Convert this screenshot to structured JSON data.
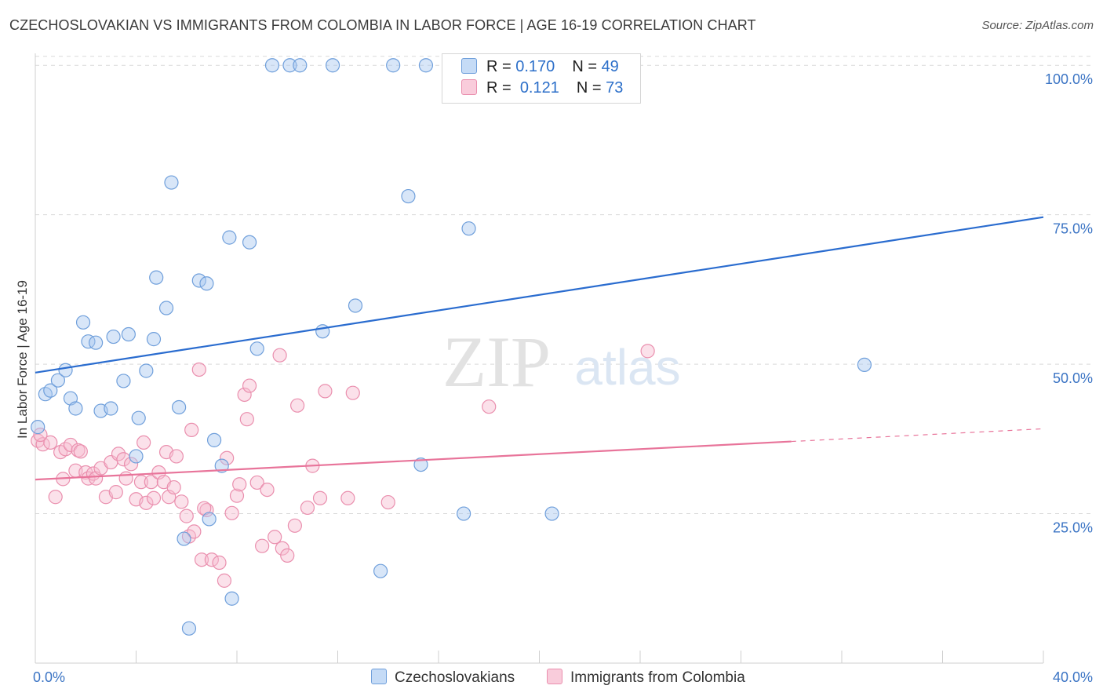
{
  "header": {
    "title": "CZECHOSLOVAKIAN VS IMMIGRANTS FROM COLOMBIA IN LABOR FORCE | AGE 16-19 CORRELATION CHART",
    "source": "Source: ZipAtlas.com"
  },
  "watermark": {
    "zip": "ZIP",
    "atlas": "atlas"
  },
  "legend": {
    "rows": [
      {
        "r_label": "R =",
        "r_value": "0.170",
        "n_label": "N =",
        "n_value": "49"
      },
      {
        "r_label": "R =",
        "r_value": "0.121",
        "n_label": "N =",
        "n_value": "73"
      }
    ]
  },
  "bottom_legend": {
    "blue_label": "Czechoslovakians",
    "pink_label": "Immigrants from Colombia"
  },
  "colors": {
    "blue_fill": "#a9c8f0",
    "blue_stroke": "#6f9fdb",
    "blue_line": "#2a6ccf",
    "pink_fill": "#f7bdd0",
    "pink_stroke": "#ea8fae",
    "pink_line": "#e8749a",
    "grid": "#d9d9d9",
    "tick_text": "#3b74c4"
  },
  "chart_data": {
    "type": "scatter",
    "title": "CZECHOSLOVAKIAN VS IMMIGRANTS FROM COLOMBIA IN LABOR FORCE | AGE 16-19 CORRELATION CHART",
    "xlabel": "",
    "ylabel": "In Labor Force | Age 16-19",
    "xlim": [
      0,
      40
    ],
    "ylim": [
      0,
      102
    ],
    "x_tick_labels": [
      "0.0%",
      "40.0%"
    ],
    "y_ticks": [
      25,
      50,
      75,
      100
    ],
    "y_tick_labels": [
      "25.0%",
      "50.0%",
      "75.0%",
      "100.0%"
    ],
    "grid": true,
    "legend_position": "top-center",
    "series": [
      {
        "name": "Czechoslovakians",
        "r": 0.17,
        "n": 49,
        "trend": {
          "x": [
            0,
            40
          ],
          "y": [
            48.6,
            74.6
          ],
          "dashed_from": null
        },
        "points": [
          [
            0.1,
            39.5
          ],
          [
            0.4,
            45.0
          ],
          [
            0.6,
            45.6
          ],
          [
            0.9,
            47.3
          ],
          [
            1.2,
            49.0
          ],
          [
            1.4,
            44.3
          ],
          [
            1.6,
            42.6
          ],
          [
            1.9,
            57.0
          ],
          [
            2.1,
            53.8
          ],
          [
            2.4,
            53.6
          ],
          [
            2.6,
            42.2
          ],
          [
            3.0,
            42.6
          ],
          [
            3.1,
            54.6
          ],
          [
            3.5,
            47.2
          ],
          [
            3.7,
            55.0
          ],
          [
            4.0,
            34.6
          ],
          [
            4.1,
            41.0
          ],
          [
            4.4,
            48.9
          ],
          [
            4.7,
            54.2
          ],
          [
            4.8,
            64.5
          ],
          [
            5.2,
            59.4
          ],
          [
            5.4,
            80.4
          ],
          [
            5.7,
            42.8
          ],
          [
            5.9,
            20.8
          ],
          [
            6.1,
            5.8
          ],
          [
            6.5,
            64.0
          ],
          [
            6.8,
            63.5
          ],
          [
            6.9,
            24.1
          ],
          [
            7.1,
            37.3
          ],
          [
            7.4,
            33.0
          ],
          [
            7.7,
            71.2
          ],
          [
            7.8,
            10.8
          ],
          [
            8.5,
            70.4
          ],
          [
            8.8,
            52.6
          ],
          [
            9.4,
            100.0
          ],
          [
            10.1,
            100.0
          ],
          [
            10.5,
            100.0
          ],
          [
            11.4,
            55.5
          ],
          [
            11.8,
            100.0
          ],
          [
            12.7,
            59.8
          ],
          [
            13.7,
            15.4
          ],
          [
            14.2,
            100.0
          ],
          [
            14.8,
            78.1
          ],
          [
            15.3,
            33.2
          ],
          [
            15.5,
            100.0
          ],
          [
            17.0,
            25.0
          ],
          [
            17.2,
            72.7
          ],
          [
            20.5,
            25.0
          ],
          [
            32.9,
            49.9
          ]
        ]
      },
      {
        "name": "Immigrants from Colombia",
        "r": 0.121,
        "n": 73,
        "trend": {
          "x": [
            0,
            40
          ],
          "y": [
            30.7,
            39.2
          ],
          "dashed_from": 30
        },
        "points": [
          [
            0.1,
            37.2
          ],
          [
            0.3,
            36.6
          ],
          [
            0.6,
            36.9
          ],
          [
            0.8,
            27.8
          ],
          [
            1.0,
            35.3
          ],
          [
            1.2,
            35.8
          ],
          [
            1.4,
            36.5
          ],
          [
            1.6,
            32.2
          ],
          [
            1.7,
            35.6
          ],
          [
            1.8,
            35.4
          ],
          [
            2.0,
            31.9
          ],
          [
            2.1,
            30.9
          ],
          [
            2.3,
            31.7
          ],
          [
            2.4,
            30.9
          ],
          [
            2.6,
            32.6
          ],
          [
            2.8,
            27.8
          ],
          [
            3.0,
            33.6
          ],
          [
            3.2,
            28.6
          ],
          [
            3.3,
            35.0
          ],
          [
            3.5,
            34.1
          ],
          [
            3.6,
            30.9
          ],
          [
            3.8,
            33.3
          ],
          [
            4.0,
            27.4
          ],
          [
            4.2,
            30.3
          ],
          [
            4.3,
            36.9
          ],
          [
            4.4,
            26.8
          ],
          [
            4.6,
            30.3
          ],
          [
            4.7,
            27.6
          ],
          [
            4.9,
            31.9
          ],
          [
            5.1,
            30.3
          ],
          [
            5.2,
            35.3
          ],
          [
            5.3,
            27.8
          ],
          [
            5.5,
            29.4
          ],
          [
            5.6,
            34.6
          ],
          [
            5.8,
            27.0
          ],
          [
            6.0,
            24.6
          ],
          [
            6.1,
            21.2
          ],
          [
            6.2,
            39.0
          ],
          [
            6.3,
            22.0
          ],
          [
            6.5,
            49.1
          ],
          [
            6.6,
            17.3
          ],
          [
            6.8,
            25.6
          ],
          [
            7.0,
            17.3
          ],
          [
            7.3,
            16.8
          ],
          [
            7.5,
            13.8
          ],
          [
            7.6,
            34.3
          ],
          [
            7.8,
            25.1
          ],
          [
            8.0,
            28.0
          ],
          [
            8.1,
            29.9
          ],
          [
            8.3,
            44.9
          ],
          [
            8.4,
            40.8
          ],
          [
            8.5,
            46.4
          ],
          [
            8.8,
            30.2
          ],
          [
            9.0,
            19.6
          ],
          [
            9.2,
            29.0
          ],
          [
            9.5,
            21.1
          ],
          [
            9.7,
            51.5
          ],
          [
            9.8,
            19.2
          ],
          [
            10.0,
            18.0
          ],
          [
            10.3,
            23.0
          ],
          [
            10.4,
            43.1
          ],
          [
            10.8,
            26.0
          ],
          [
            11.0,
            33.0
          ],
          [
            11.3,
            27.6
          ],
          [
            11.5,
            45.5
          ],
          [
            12.4,
            27.6
          ],
          [
            12.6,
            45.2
          ],
          [
            14.0,
            26.9
          ],
          [
            18.0,
            42.9
          ],
          [
            24.3,
            52.2
          ],
          [
            0.2,
            38.2
          ],
          [
            1.1,
            30.8
          ],
          [
            6.7,
            25.9
          ]
        ]
      }
    ]
  }
}
